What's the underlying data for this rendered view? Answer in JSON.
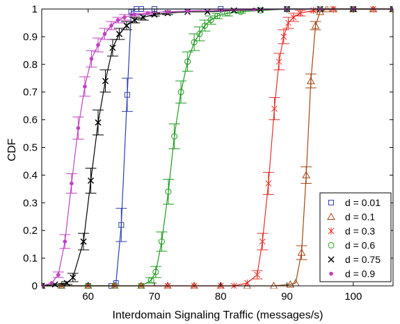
{
  "chart_data": {
    "type": "line",
    "title": "",
    "xlabel": "Interdomain Signaling Traffic (messages/s)",
    "ylabel": "CDF",
    "xlim": [
      53,
      106
    ],
    "ylim": [
      0,
      1
    ],
    "xticks": [
      60,
      70,
      80,
      90,
      100
    ],
    "yticks": [
      0,
      0.1,
      0.2,
      0.3,
      0.4,
      0.5,
      0.6,
      0.7,
      0.8,
      0.9,
      1
    ],
    "grid": false,
    "legend_position": "bottom-right",
    "series": [
      {
        "name": "d = 0.01",
        "color": "#2a3fb0",
        "marker": "square",
        "x": [
          53,
          56,
          60,
          63.5,
          64.2,
          65,
          65.9,
          66.5,
          67.3,
          68,
          70,
          80,
          90,
          100,
          106
        ],
        "y": [
          0,
          0,
          0,
          0,
          0.01,
          0.22,
          0.69,
          0.99,
          1,
          1,
          1,
          1,
          1,
          1,
          1
        ],
        "err": [
          0,
          0,
          0,
          0,
          0,
          0.06,
          0.06,
          0.01,
          0,
          0,
          0,
          0,
          0,
          0,
          0
        ]
      },
      {
        "name": "d = 0.1",
        "color": "#a3460f",
        "marker": "triangle",
        "x": [
          53,
          56,
          60,
          64,
          68,
          72,
          76,
          80,
          84,
          88,
          90.5,
          91.3,
          92.2,
          92.9,
          93.6,
          94.3,
          95,
          96,
          97,
          100,
          103,
          106
        ],
        "y": [
          0,
          0,
          0,
          0,
          0,
          0,
          0,
          0,
          0,
          0,
          0.005,
          0.01,
          0.12,
          0.4,
          0.74,
          0.94,
          0.99,
          1,
          1,
          1,
          1,
          1
        ],
        "err": [
          0,
          0,
          0,
          0,
          0,
          0,
          0,
          0,
          0,
          0,
          0,
          0,
          0.025,
          0.03,
          0.025,
          0.015,
          0,
          0,
          0,
          0,
          0,
          0
        ]
      },
      {
        "name": "d = 0.3",
        "color": "#e8302a",
        "marker": "asterisk",
        "x": [
          53,
          56,
          60,
          64,
          68,
          72,
          76,
          80,
          82,
          84,
          85.5,
          86.3,
          87.2,
          88.1,
          88.8,
          89.5,
          90.2,
          91,
          92,
          94,
          97,
          100,
          103,
          106
        ],
        "y": [
          0,
          0,
          0,
          0,
          0,
          0,
          0,
          0,
          0,
          0.01,
          0.04,
          0.16,
          0.37,
          0.64,
          0.81,
          0.9,
          0.95,
          0.97,
          0.985,
          0.995,
          1,
          1,
          1,
          1
        ],
        "err": [
          0,
          0,
          0,
          0,
          0,
          0,
          0,
          0,
          0,
          0,
          0.015,
          0.03,
          0.04,
          0.04,
          0.03,
          0.025,
          0.02,
          0.015,
          0.01,
          0.005,
          0,
          0,
          0,
          0
        ]
      },
      {
        "name": "d = 0.6",
        "color": "#1a9a1a",
        "marker": "circle",
        "x": [
          53,
          56,
          60,
          64,
          68,
          69.5,
          70.2,
          71.1,
          72.1,
          73,
          74,
          75,
          76,
          76.8,
          77.6,
          78.5,
          79.5,
          81,
          83,
          86,
          90,
          95,
          100,
          106
        ],
        "y": [
          0,
          0,
          0,
          0,
          0,
          0.02,
          0.05,
          0.16,
          0.34,
          0.54,
          0.7,
          0.81,
          0.88,
          0.91,
          0.94,
          0.96,
          0.975,
          0.985,
          0.99,
          0.995,
          1,
          1,
          1,
          1
        ],
        "err": [
          0,
          0,
          0,
          0,
          0,
          0.01,
          0.02,
          0.035,
          0.045,
          0.045,
          0.04,
          0.035,
          0.03,
          0.025,
          0.02,
          0.015,
          0.01,
          0.01,
          0.005,
          0,
          0,
          0,
          0,
          0
        ]
      },
      {
        "name": "d = 0.75",
        "color": "#000000",
        "marker": "x",
        "x": [
          53,
          55,
          56.8,
          57.7,
          59.3,
          60.4,
          61.5,
          62.6,
          63.7,
          64.7,
          65.8,
          67,
          68.3,
          70,
          72,
          75,
          78,
          82,
          86,
          90,
          95,
          100,
          106
        ],
        "y": [
          0,
          0.005,
          0.01,
          0.03,
          0.16,
          0.38,
          0.59,
          0.74,
          0.86,
          0.91,
          0.94,
          0.96,
          0.97,
          0.98,
          0.985,
          0.99,
          0.99,
          0.995,
          0.997,
          1,
          1,
          1,
          1
        ],
        "err": [
          0,
          0,
          0.005,
          0.015,
          0.03,
          0.045,
          0.045,
          0.04,
          0.03,
          0.02,
          0.015,
          0.01,
          0.01,
          0.005,
          0.005,
          0,
          0,
          0,
          0,
          0,
          0,
          0,
          0
        ]
      },
      {
        "name": "d = 0.9",
        "color": "#c040c0",
        "marker": "dot",
        "x": [
          53,
          54.5,
          55.5,
          56.5,
          57.5,
          58.5,
          59.5,
          60.5,
          61.5,
          62.5,
          63.5,
          64.5,
          65.5,
          67,
          69,
          72,
          75,
          80,
          85,
          90,
          95,
          100,
          106
        ],
        "y": [
          0,
          0.01,
          0.04,
          0.16,
          0.37,
          0.57,
          0.72,
          0.82,
          0.87,
          0.91,
          0.94,
          0.96,
          0.97,
          0.98,
          0.985,
          0.99,
          0.993,
          0.996,
          0.998,
          1,
          1,
          1,
          1
        ],
        "err": [
          0,
          0,
          0.01,
          0.025,
          0.035,
          0.04,
          0.035,
          0.03,
          0.025,
          0.02,
          0.015,
          0.01,
          0.01,
          0.005,
          0.005,
          0,
          0,
          0,
          0,
          0,
          0,
          0,
          0
        ]
      }
    ]
  }
}
